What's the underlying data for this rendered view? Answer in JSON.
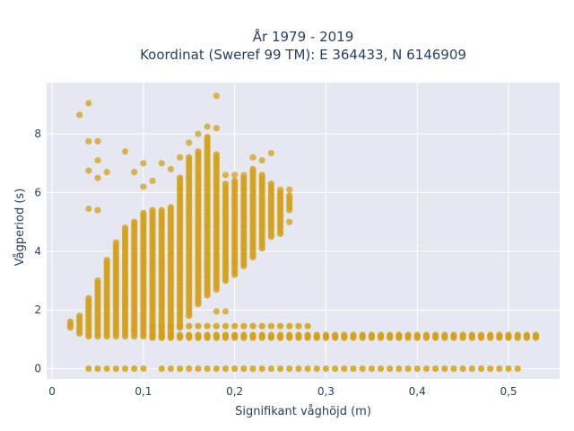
{
  "chart_data": {
    "type": "scatter",
    "title_line1": "År 1979 - 2019",
    "title_line2": "Koordinat (Sweref 99 TM): E 364433, N 6146909",
    "xlabel": "Signifikant våghöjd (m)",
    "ylabel": "Vågperiod (s)",
    "xlim": [
      -0.006,
      0.556
    ],
    "ylim": [
      -0.35,
      9.75
    ],
    "xticks": [
      0,
      0.1,
      0.2,
      0.3,
      0.4,
      0.5
    ],
    "xtick_labels": [
      "0",
      "0,1",
      "0,2",
      "0,3",
      "0,4",
      "0,5"
    ],
    "yticks": [
      0,
      2,
      4,
      6,
      8
    ],
    "ytick_labels": [
      "0",
      "2",
      "4",
      "6",
      "8"
    ],
    "grid": true,
    "legend": "none",
    "marker_color": "#d4a017",
    "background_color": "#e5e8f1",
    "series": [
      {
        "x_step": 0.01,
        "columns": [
          {
            "x": 0.02,
            "y_min": 1.4,
            "y_max": 1.6
          },
          {
            "x": 0.03,
            "y_min": 1.2,
            "y_max": 1.8
          },
          {
            "x": 0.04,
            "y_min": 1.1,
            "y_max": 2.4
          },
          {
            "x": 0.05,
            "y_min": 1.1,
            "y_max": 3.0
          },
          {
            "x": 0.06,
            "y_min": 1.1,
            "y_max": 3.7
          },
          {
            "x": 0.07,
            "y_min": 1.1,
            "y_max": 4.3
          },
          {
            "x": 0.08,
            "y_min": 1.1,
            "y_max": 4.8
          },
          {
            "x": 0.09,
            "y_min": 1.1,
            "y_max": 5.0
          },
          {
            "x": 0.1,
            "y_min": 1.1,
            "y_max": 5.3
          },
          {
            "x": 0.11,
            "y_min": 1.1,
            "y_max": 5.4
          },
          {
            "x": 0.12,
            "y_min": 1.1,
            "y_max": 5.4
          },
          {
            "x": 0.13,
            "y_min": 1.2,
            "y_max": 5.5
          },
          {
            "x": 0.14,
            "y_min": 1.4,
            "y_max": 6.5
          },
          {
            "x": 0.15,
            "y_min": 1.8,
            "y_max": 7.2
          },
          {
            "x": 0.16,
            "y_min": 2.2,
            "y_max": 7.4
          },
          {
            "x": 0.17,
            "y_min": 2.5,
            "y_max": 7.9
          },
          {
            "x": 0.18,
            "y_min": 2.7,
            "y_max": 7.3
          },
          {
            "x": 0.19,
            "y_min": 3.0,
            "y_max": 6.3
          },
          {
            "x": 0.2,
            "y_min": 3.2,
            "y_max": 6.4
          },
          {
            "x": 0.21,
            "y_min": 3.5,
            "y_max": 6.5
          },
          {
            "x": 0.22,
            "y_min": 3.8,
            "y_max": 6.8
          },
          {
            "x": 0.23,
            "y_min": 4.1,
            "y_max": 6.6
          },
          {
            "x": 0.24,
            "y_min": 4.5,
            "y_max": 6.3
          },
          {
            "x": 0.25,
            "y_min": 4.6,
            "y_max": 6.0
          },
          {
            "x": 0.26,
            "y_min": 5.5,
            "y_max": 5.9
          }
        ],
        "low_band": {
          "x_min": 0.11,
          "x_max": 0.53,
          "y": [
            1.05,
            1.1,
            1.15
          ]
        },
        "mid_band": {
          "x_min": 0.11,
          "x_max": 0.28,
          "y": [
            1.45
          ]
        },
        "zero_row": {
          "x_min": 0.04,
          "x_max": 0.51,
          "x_skip": [
            0.11
          ],
          "y": [
            0.0
          ]
        },
        "outliers": [
          {
            "x": 0.03,
            "y": 8.65
          },
          {
            "x": 0.04,
            "y": 9.05
          },
          {
            "x": 0.04,
            "y": 7.75
          },
          {
            "x": 0.05,
            "y": 7.75
          },
          {
            "x": 0.04,
            "y": 6.75
          },
          {
            "x": 0.05,
            "y": 6.5
          },
          {
            "x": 0.05,
            "y": 7.1
          },
          {
            "x": 0.06,
            "y": 6.7
          },
          {
            "x": 0.04,
            "y": 5.45
          },
          {
            "x": 0.05,
            "y": 5.4
          },
          {
            "x": 0.08,
            "y": 7.4
          },
          {
            "x": 0.09,
            "y": 6.7
          },
          {
            "x": 0.1,
            "y": 7.0
          },
          {
            "x": 0.1,
            "y": 6.2
          },
          {
            "x": 0.11,
            "y": 6.4
          },
          {
            "x": 0.12,
            "y": 7.0
          },
          {
            "x": 0.13,
            "y": 6.8
          },
          {
            "x": 0.14,
            "y": 7.2
          },
          {
            "x": 0.15,
            "y": 7.7
          },
          {
            "x": 0.16,
            "y": 8.0
          },
          {
            "x": 0.17,
            "y": 8.25
          },
          {
            "x": 0.18,
            "y": 9.3
          },
          {
            "x": 0.18,
            "y": 8.2
          },
          {
            "x": 0.19,
            "y": 6.6
          },
          {
            "x": 0.2,
            "y": 6.6
          },
          {
            "x": 0.21,
            "y": 6.6
          },
          {
            "x": 0.22,
            "y": 7.2
          },
          {
            "x": 0.23,
            "y": 7.1
          },
          {
            "x": 0.24,
            "y": 7.35
          },
          {
            "x": 0.25,
            "y": 6.1
          },
          {
            "x": 0.26,
            "y": 6.1
          },
          {
            "x": 0.26,
            "y": 5.0
          },
          {
            "x": 0.26,
            "y": 5.4
          },
          {
            "x": 0.18,
            "y": 1.95
          },
          {
            "x": 0.19,
            "y": 1.95
          },
          {
            "x": 0.09,
            "y": 1.3
          }
        ]
      }
    ]
  }
}
